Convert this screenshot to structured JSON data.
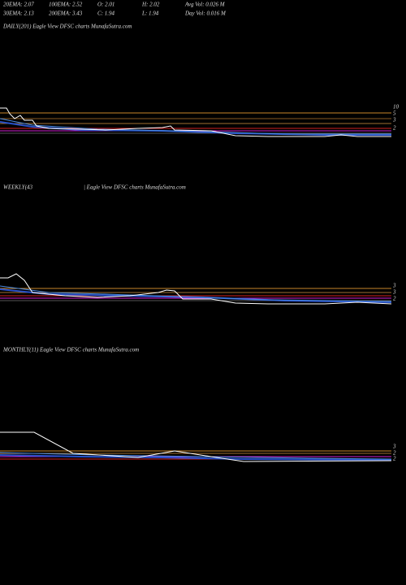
{
  "header": {
    "rows": [
      [
        "20EMA: 2.07",
        "100EMA: 2.52",
        "O: 2.01",
        "H: 2.02",
        "Avg Vol: 0.026  M"
      ],
      [
        "30EMA: 2.13",
        "200EMA: 3.43",
        "C: 1.94",
        "L: 1.94",
        "Day Vol: 0.016  M"
      ]
    ]
  },
  "panels": [
    {
      "title": [
        "DAILY(201) Eagle   View  DFSC charts MunafaSutra.com"
      ],
      "axis_labels": [
        "10",
        "5",
        "3",
        "2"
      ]
    },
    {
      "title": [
        "WEEKLY(43",
        "| Eagle   View  DFSC charts MunafaSutra.com"
      ],
      "axis_labels": [
        "3",
        "3",
        "2"
      ]
    },
    {
      "title": [
        "MONTHLY(11) Eagle   View  DFSC charts MunafaSutra.com"
      ],
      "axis_labels": [
        "3",
        "2",
        "2"
      ]
    }
  ]
}
